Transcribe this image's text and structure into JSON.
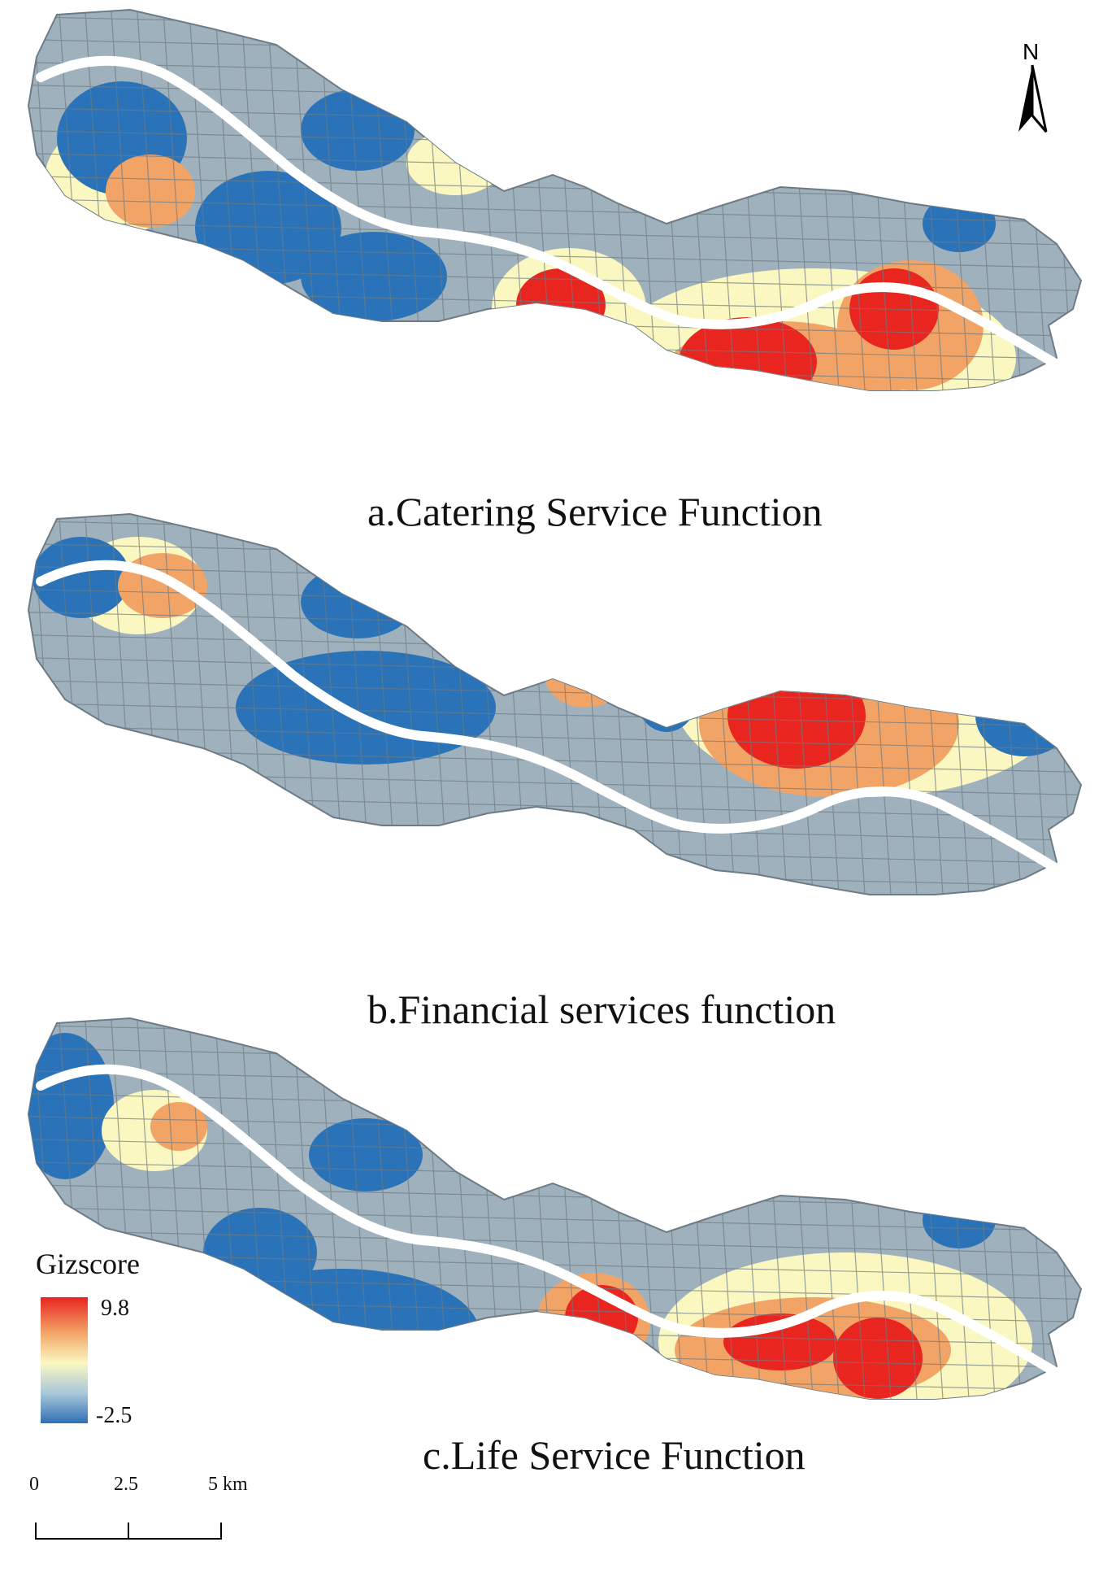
{
  "panels": [
    {
      "caption": "a.Catering Service Function",
      "variant": "catering"
    },
    {
      "caption": "b.Financial services function",
      "variant": "financial"
    },
    {
      "caption": "c.Life Service Function",
      "variant": "life"
    }
  ],
  "north_arrow": {
    "label": "N"
  },
  "legend": {
    "title": "Gizscore",
    "max_label": "9.8",
    "min_label": "-2.5",
    "colors": {
      "high": "#e8251f",
      "mid_high": "#f2a466",
      "mid": "#fbf7c0",
      "mid_low": "#a9c8da",
      "low": "#2f6fb4"
    }
  },
  "scale_bar": {
    "ticks": [
      "0",
      "2.5",
      "5 km"
    ]
  },
  "colors": {
    "background_area": "#9fb1bc",
    "river": "#ffffff",
    "road": "#6e7b84",
    "cold": "#2b73b8",
    "neutral": "#fbf7c0",
    "warm": "#f2a466",
    "hot": "#e8251f"
  }
}
